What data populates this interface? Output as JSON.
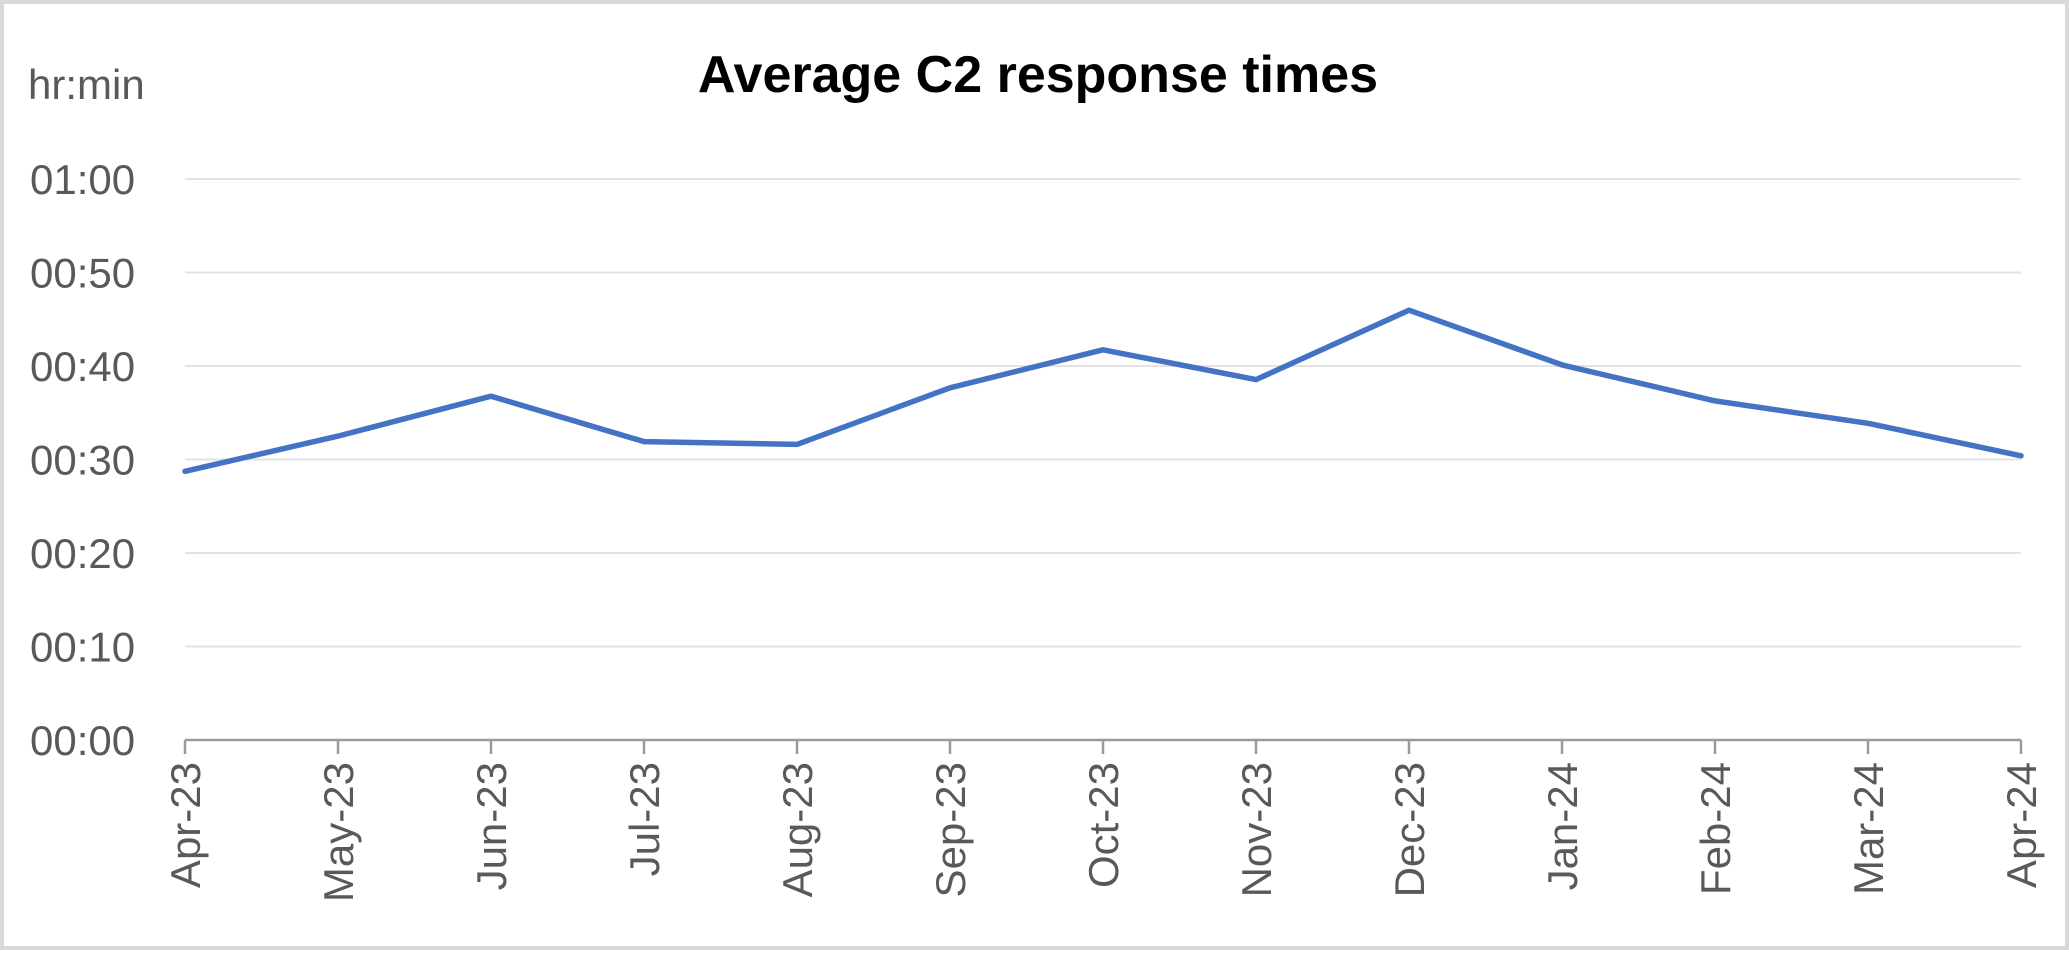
{
  "chart_data": {
    "type": "line",
    "title": "Average C2 response times",
    "ylabel": "hr:min",
    "xlabel": "",
    "categories": [
      "Apr-23",
      "May-23",
      "Jun-23",
      "Jul-23",
      "Aug-23",
      "Sep-23",
      "Oct-23",
      "Nov-23",
      "Dec-23",
      "Jan-24",
      "Feb-24",
      "Mar-24",
      "Apr-24"
    ],
    "series": [
      {
        "values": [
          "00:28:44",
          "00:32:30",
          "00:36:46",
          "00:31:55",
          "00:31:37",
          "00:37:40",
          "00:41:44",
          "00:38:33",
          "00:45:58",
          "00:40:07",
          "00:36:16",
          "00:33:52",
          "00:30:24"
        ],
        "color": "#4472c4"
      }
    ],
    "yticks": [
      "00:00",
      "00:10",
      "00:20",
      "00:30",
      "00:40",
      "00:50",
      "01:00"
    ],
    "ylim": [
      "00:00",
      "01:00"
    ],
    "grid": true,
    "legend": "none"
  }
}
